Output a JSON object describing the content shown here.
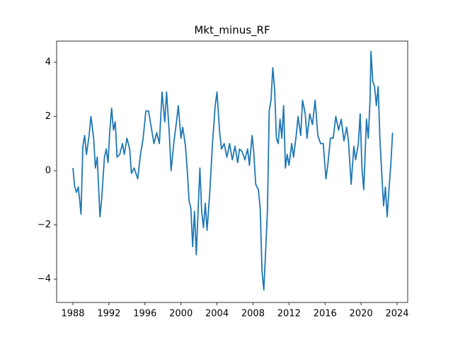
{
  "chart_data": {
    "type": "line",
    "title": "Mkt_minus_RF",
    "x": [
      1988.0,
      1988.2,
      1988.4,
      1988.6,
      1988.9,
      1989.1,
      1989.3,
      1989.5,
      1989.8,
      1990.0,
      1990.3,
      1990.5,
      1990.7,
      1991.0,
      1991.2,
      1991.5,
      1991.7,
      1991.9,
      1992.1,
      1992.3,
      1992.5,
      1992.7,
      1992.9,
      1993.2,
      1993.5,
      1993.7,
      1994.0,
      1994.3,
      1994.5,
      1994.8,
      1995.2,
      1995.5,
      1995.8,
      1996.1,
      1996.4,
      1996.7,
      1997.0,
      1997.3,
      1997.6,
      1997.9,
      1998.2,
      1998.4,
      1998.7,
      1998.9,
      1999.2,
      1999.5,
      1999.7,
      2000.0,
      2000.2,
      2000.5,
      2000.7,
      2000.9,
      2001.1,
      2001.3,
      2001.5,
      2001.7,
      2001.9,
      2002.1,
      2002.3,
      2002.5,
      2002.7,
      2002.9,
      2003.2,
      2003.5,
      2003.8,
      2004.0,
      2004.3,
      2004.5,
      2004.8,
      2005.1,
      2005.4,
      2005.7,
      2006.0,
      2006.3,
      2006.5,
      2006.8,
      2007.1,
      2007.4,
      2007.6,
      2007.9,
      2008.1,
      2008.3,
      2008.6,
      2008.8,
      2009.0,
      2009.2,
      2009.4,
      2009.6,
      2009.8,
      2010.0,
      2010.2,
      2010.4,
      2010.6,
      2010.8,
      2011.0,
      2011.2,
      2011.4,
      2011.6,
      2011.8,
      2012.0,
      2012.3,
      2012.5,
      2012.8,
      2013.0,
      2013.3,
      2013.5,
      2013.8,
      2014.0,
      2014.3,
      2014.6,
      2014.9,
      2015.2,
      2015.5,
      2015.8,
      2016.1,
      2016.3,
      2016.6,
      2016.9,
      2017.2,
      2017.5,
      2017.8,
      2018.1,
      2018.4,
      2018.6,
      2018.9,
      2019.2,
      2019.4,
      2019.7,
      2019.9,
      2020.1,
      2020.3,
      2020.6,
      2020.8,
      2021.0,
      2021.1,
      2021.3,
      2021.5,
      2021.7,
      2021.9,
      2022.1,
      2022.3,
      2022.5,
      2022.7,
      2022.9,
      2023.1,
      2023.3,
      2023.5
    ],
    "series": [
      {
        "color": "#1f77b4",
        "values": [
          0.1,
          -0.6,
          -0.8,
          -0.6,
          -1.6,
          0.9,
          1.3,
          0.6,
          1.3,
          2.0,
          1.2,
          0.1,
          0.5,
          -1.7,
          -1.0,
          0.5,
          0.8,
          0.3,
          1.5,
          2.3,
          1.5,
          1.8,
          0.5,
          0.6,
          1.0,
          0.6,
          1.2,
          0.8,
          -0.1,
          0.1,
          -0.3,
          0.6,
          1.2,
          2.2,
          2.2,
          1.6,
          1.0,
          1.4,
          1.0,
          2.9,
          1.8,
          2.9,
          1.4,
          0.0,
          1.0,
          1.8,
          2.4,
          1.2,
          1.6,
          0.9,
          0.0,
          -1.1,
          -1.4,
          -2.8,
          -1.5,
          -3.1,
          -1.5,
          0.1,
          -1.5,
          -2.1,
          -1.2,
          -2.2,
          -0.8,
          1.0,
          2.4,
          2.9,
          1.4,
          0.8,
          1.0,
          0.5,
          1.0,
          0.4,
          0.9,
          0.3,
          0.8,
          0.7,
          0.4,
          0.8,
          0.2,
          1.3,
          0.6,
          -0.5,
          -0.7,
          -1.4,
          -3.7,
          -4.4,
          -3.0,
          -1.5,
          2.2,
          2.6,
          3.8,
          3.0,
          1.2,
          1.0,
          1.9,
          1.2,
          2.4,
          0.1,
          0.6,
          0.2,
          1.0,
          0.5,
          1.3,
          2.0,
          1.3,
          2.6,
          2.1,
          1.2,
          2.1,
          1.7,
          2.6,
          1.3,
          1.0,
          1.0,
          -0.3,
          0.2,
          1.2,
          1.2,
          2.0,
          1.5,
          1.9,
          1.1,
          1.6,
          1.1,
          -0.5,
          0.9,
          0.4,
          1.0,
          2.1,
          0.1,
          -0.7,
          1.9,
          1.2,
          2.6,
          4.4,
          3.3,
          3.1,
          2.4,
          3.1,
          1.1,
          -0.1,
          -1.3,
          -0.6,
          -1.7,
          -0.7,
          0.2,
          1.4
        ]
      }
    ],
    "xlim": [
      1986.19,
      2025.18
    ],
    "ylim": [
      -4.86,
      4.78
    ],
    "xticks": [
      1988,
      1992,
      1996,
      2000,
      2004,
      2008,
      2012,
      2016,
      2020,
      2024
    ],
    "yticks": [
      {
        "value": -4,
        "label": "−4"
      },
      {
        "value": -2,
        "label": "−2"
      },
      0,
      2,
      4
    ]
  }
}
